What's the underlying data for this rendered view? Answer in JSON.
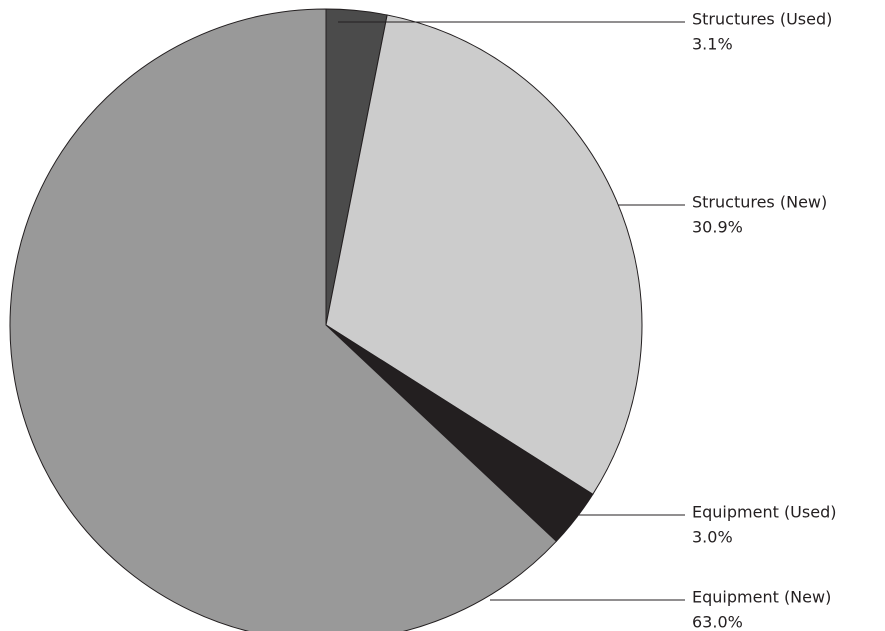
{
  "chart_data": {
    "type": "pie",
    "categories": [
      "Structures (Used)",
      "Structures (New)",
      "Equipment (Used)",
      "Equipment (New)"
    ],
    "values": [
      3.1,
      30.9,
      3.0,
      63.0
    ],
    "value_labels": [
      "3.1%",
      "30.9%",
      "3.0%",
      "63.0%"
    ],
    "colors": [
      "#4b4b4b",
      "#cccccc",
      "#231f20",
      "#999999"
    ]
  }
}
